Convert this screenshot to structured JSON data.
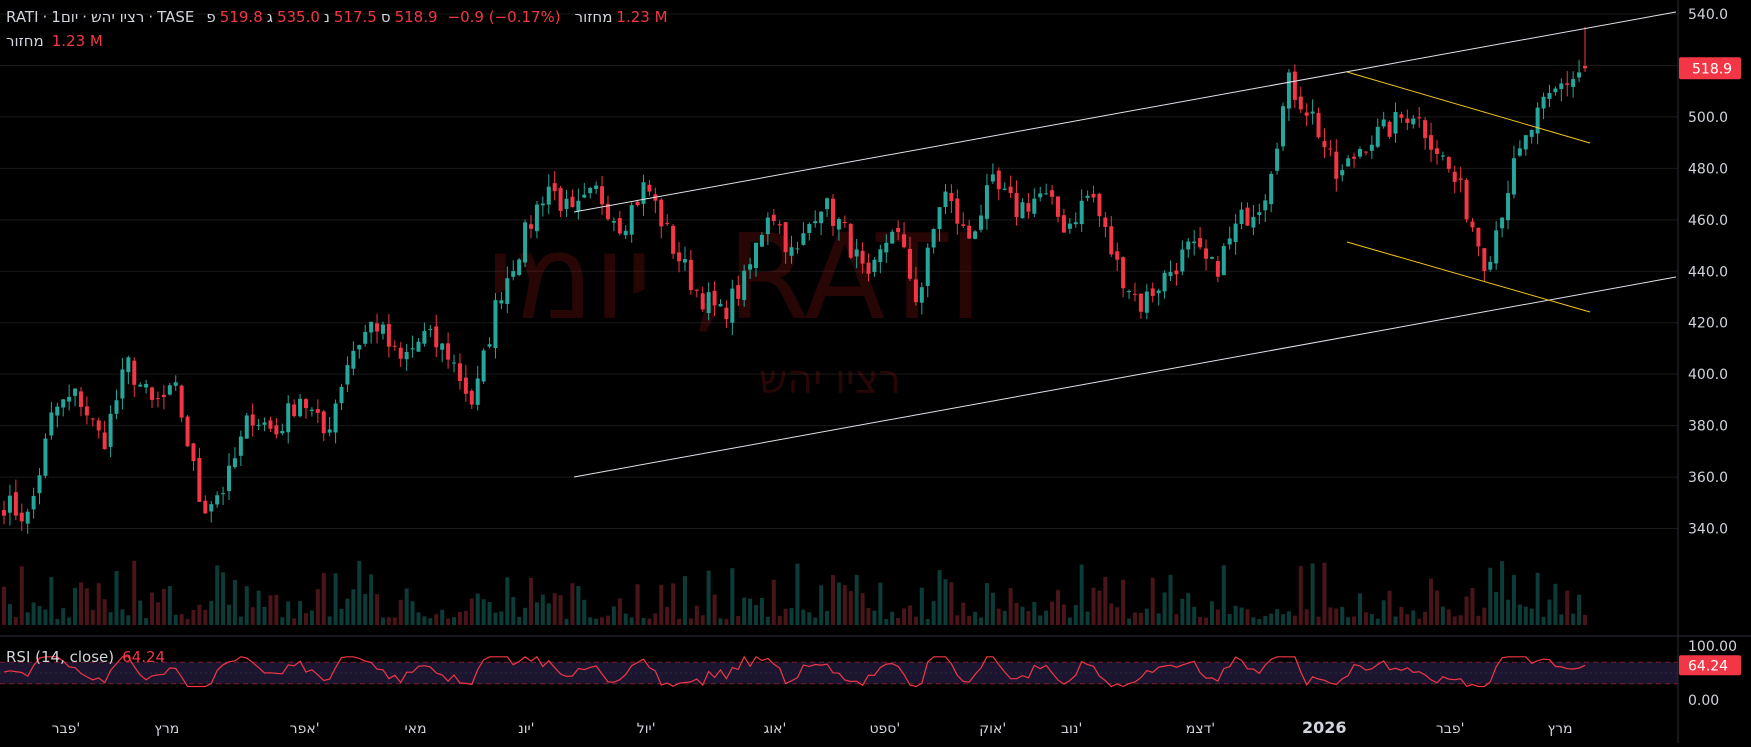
{
  "header": {
    "symbol": "RATI",
    "name": "רציו  יהש",
    "interval": "1יום",
    "exchange": "TASE",
    "sep": "·",
    "open_label": "פ",
    "open": "519.8",
    "high_label": "ג",
    "high": "535.0",
    "low_label": "נ",
    "low": "517.5",
    "close_label": "ס",
    "close": "518.9",
    "change": "−0.9 (−0.17%)",
    "volume_label": "מחזור",
    "volume": "1.23 M"
  },
  "volume_pane": {
    "label": "מחזור",
    "value": "1.23 M"
  },
  "rsi_pane": {
    "label": "RSI (14, close)",
    "value": "64.24"
  },
  "watermark": {
    "line1": "RATI, יומי",
    "line2": "רציו  יהש"
  },
  "price_axis": {
    "ticks": [
      "540.0",
      "520.0",
      "500.0",
      "480.0",
      "460.0",
      "440.0",
      "420.0",
      "400.0",
      "380.0",
      "360.0",
      "340.0"
    ],
    "last_price_label": "518.9"
  },
  "rsi_axis": {
    "ticks": [
      "100.00",
      "0.00"
    ],
    "last_label": "64.24"
  },
  "time_axis": {
    "labels": [
      "פבר'",
      "מרץ",
      "אפר'",
      "מאי",
      "יונ'",
      "יול'",
      "אוג'",
      "ספט'",
      "אוק'",
      "נוב'",
      "דצמ'",
      "2026",
      "פבר'",
      "מרץ"
    ],
    "bold_index": 11
  },
  "colors": {
    "up": "#26a69a",
    "down": "#f23645",
    "channel": "#e0e3eb",
    "wedge": "#f5c518",
    "rsi": "#f23645",
    "background": "#000000"
  },
  "chart_data": {
    "type": "candlestick",
    "x_months": [
      "פבר'",
      "מרץ",
      "אפר'",
      "מאי",
      "יונ'",
      "יול'",
      "אוג'",
      "ספט'",
      "אוק'",
      "נוב'",
      "דצמ'",
      "2026",
      "פבר'",
      "מרץ"
    ],
    "y_range": [
      330,
      545
    ],
    "last": {
      "open": 519.8,
      "high": 535.0,
      "low": 517.5,
      "close": 518.9,
      "change": -0.9,
      "change_pct": -0.17,
      "volume": "1.23M"
    },
    "close_path": [
      350,
      344,
      386,
      392,
      373,
      404,
      388,
      393,
      348,
      357,
      385,
      377,
      392,
      376,
      408,
      421,
      404,
      415,
      408,
      388,
      430,
      452,
      474,
      461,
      471,
      458,
      474,
      451,
      433,
      423,
      436,
      466,
      444,
      468,
      456,
      434,
      459,
      428,
      472,
      452,
      473,
      464,
      470,
      457,
      471,
      443,
      427,
      438,
      449,
      440,
      459,
      469,
      513,
      500,
      475,
      490,
      495,
      503,
      488,
      470,
      443,
      477,
      499,
      512,
      519
    ],
    "channel_upper": [
      [
        384,
        471
      ],
      [
        1420,
        540
      ]
    ],
    "channel_lower": [
      [
        384,
        381
      ],
      [
        1420,
        449
      ]
    ],
    "wedge_upper": [
      [
        1066,
        519
      ],
      [
        1420,
        496
      ]
    ],
    "wedge_lower": [
      [
        1066,
        462
      ],
      [
        1420,
        437
      ]
    ],
    "rsi": {
      "length": 14,
      "source": "close",
      "value": 64.24,
      "range": [
        0,
        100
      ]
    }
  }
}
